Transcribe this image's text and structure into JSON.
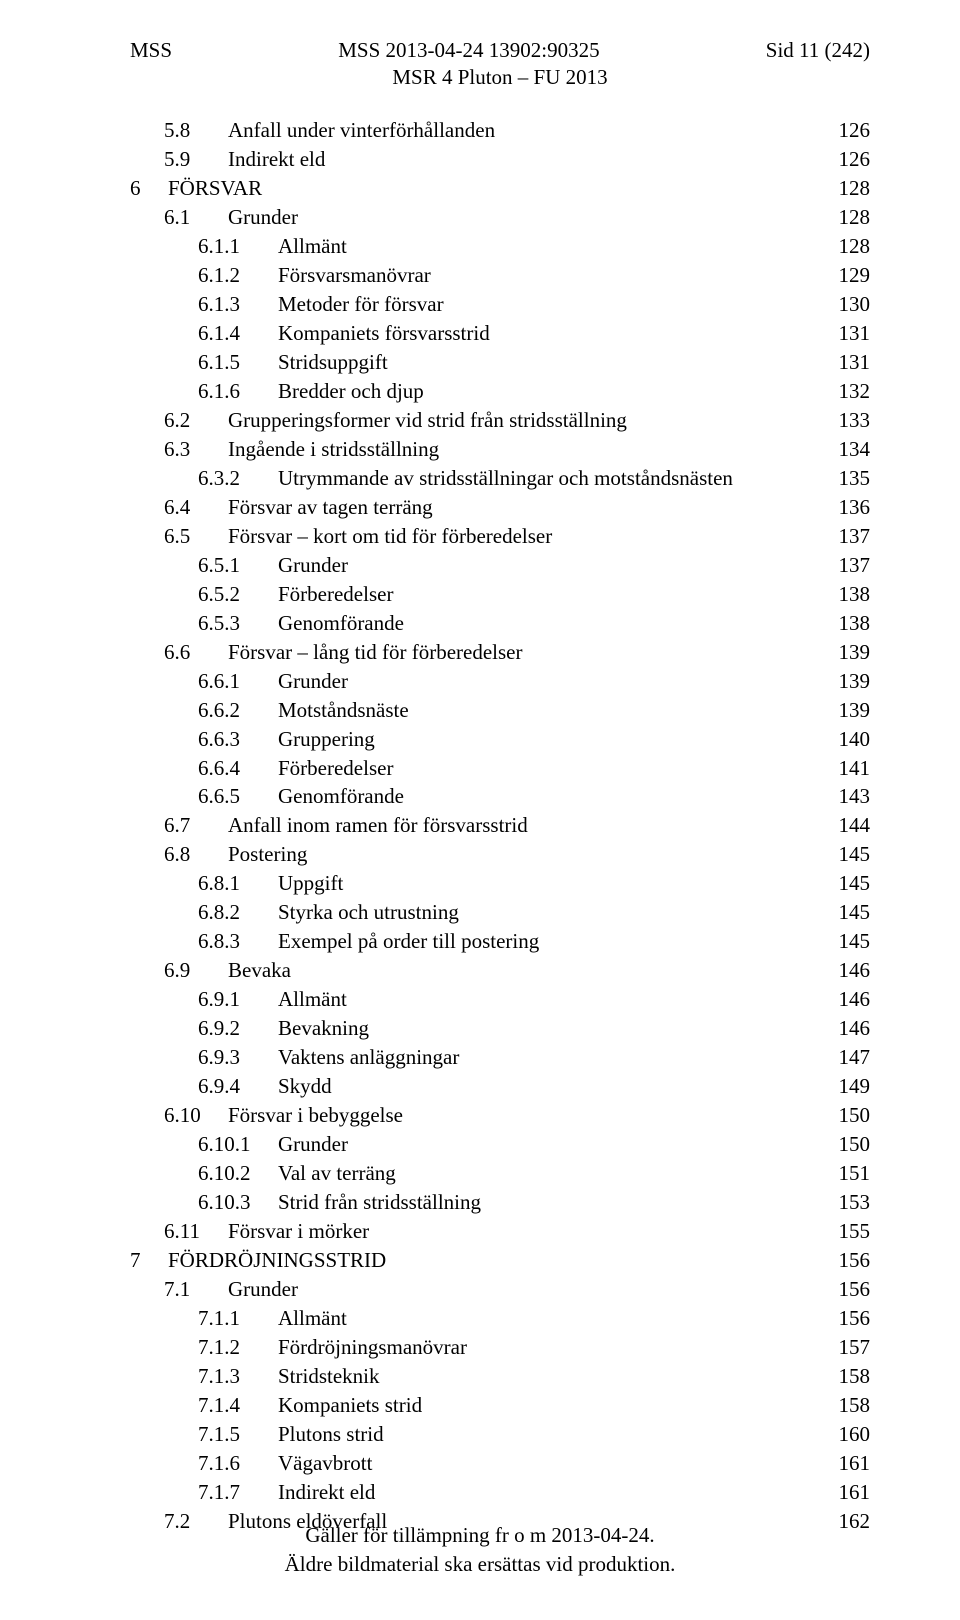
{
  "header": {
    "left": "MSS",
    "center_top": "MSS 2013-04-24 13902:90325",
    "center_sub": "MSR 4 Pluton – FU 2013",
    "right": "Sid 11 (242)"
  },
  "toc": [
    {
      "level": 1,
      "num": "5.8",
      "title": "Anfall under vinterförhållanden",
      "page": "126"
    },
    {
      "level": 1,
      "num": "5.9",
      "title": "Indirekt eld",
      "page": "126"
    },
    {
      "level": 0,
      "num": "6",
      "title": "FÖRSVAR",
      "page": "128"
    },
    {
      "level": 1,
      "num": "6.1",
      "title": "Grunder",
      "page": "128"
    },
    {
      "level": 2,
      "num": "6.1.1",
      "title": "Allmänt",
      "page": "128"
    },
    {
      "level": 2,
      "num": "6.1.2",
      "title": "Försvarsmanövrar",
      "page": "129"
    },
    {
      "level": 2,
      "num": "6.1.3",
      "title": "Metoder för försvar",
      "page": "130"
    },
    {
      "level": 2,
      "num": "6.1.4",
      "title": "Kompaniets försvarsstrid",
      "page": "131"
    },
    {
      "level": 2,
      "num": "6.1.5",
      "title": "Stridsuppgift",
      "page": "131"
    },
    {
      "level": 2,
      "num": "6.1.6",
      "title": "Bredder och djup",
      "page": "132"
    },
    {
      "level": 1,
      "num": "6.2",
      "title": "Grupperingsformer vid strid från stridsställning",
      "page": "133"
    },
    {
      "level": 1,
      "num": "6.3",
      "title": "Ingående i stridsställning",
      "page": "134"
    },
    {
      "level": 2,
      "num": "6.3.2",
      "title": "Utrymmande av stridsställningar och motståndsnästen",
      "page": "135"
    },
    {
      "level": 1,
      "num": "6.4",
      "title": "Försvar av tagen terräng",
      "page": "136"
    },
    {
      "level": 1,
      "num": "6.5",
      "title": "Försvar – kort om tid för förberedelser",
      "page": "137"
    },
    {
      "level": 2,
      "num": "6.5.1",
      "title": "Grunder",
      "page": "137"
    },
    {
      "level": 2,
      "num": "6.5.2",
      "title": "Förberedelser",
      "page": "138"
    },
    {
      "level": 2,
      "num": "6.5.3",
      "title": "Genomförande",
      "page": "138"
    },
    {
      "level": 1,
      "num": "6.6",
      "title": "Försvar – lång tid för förberedelser",
      "page": "139"
    },
    {
      "level": 2,
      "num": "6.6.1",
      "title": "Grunder",
      "page": "139"
    },
    {
      "level": 2,
      "num": "6.6.2",
      "title": "Motståndsnäste",
      "page": "139"
    },
    {
      "level": 2,
      "num": "6.6.3",
      "title": "Gruppering",
      "page": "140"
    },
    {
      "level": 2,
      "num": "6.6.4",
      "title": "Förberedelser",
      "page": "141"
    },
    {
      "level": 2,
      "num": "6.6.5",
      "title": "Genomförande",
      "page": "143"
    },
    {
      "level": 1,
      "num": "6.7",
      "title": "Anfall inom ramen för försvarsstrid",
      "page": "144"
    },
    {
      "level": 1,
      "num": "6.8",
      "title": "Postering",
      "page": "145"
    },
    {
      "level": 2,
      "num": "6.8.1",
      "title": "Uppgift",
      "page": "145"
    },
    {
      "level": 2,
      "num": "6.8.2",
      "title": "Styrka och utrustning",
      "page": "145"
    },
    {
      "level": 2,
      "num": "6.8.3",
      "title": "Exempel på order till postering",
      "page": "145"
    },
    {
      "level": 1,
      "num": "6.9",
      "title": "Bevaka",
      "page": "146"
    },
    {
      "level": 2,
      "num": "6.9.1",
      "title": "Allmänt",
      "page": "146"
    },
    {
      "level": 2,
      "num": "6.9.2",
      "title": "Bevakning",
      "page": "146"
    },
    {
      "level": 2,
      "num": "6.9.3",
      "title": "Vaktens anläggningar",
      "page": "147"
    },
    {
      "level": 2,
      "num": "6.9.4",
      "title": "Skydd",
      "page": "149"
    },
    {
      "level": 1,
      "num": "6.10",
      "title": "Försvar i bebyggelse",
      "page": "150"
    },
    {
      "level": 2,
      "num": "6.10.1",
      "title": "Grunder",
      "page": "150"
    },
    {
      "level": 2,
      "num": "6.10.2",
      "title": "Val av terräng",
      "page": "151"
    },
    {
      "level": 2,
      "num": "6.10.3",
      "title": "Strid från stridsställning",
      "page": "153"
    },
    {
      "level": 1,
      "num": "6.11",
      "title": "Försvar i mörker",
      "page": "155"
    },
    {
      "level": 0,
      "num": "7",
      "title": "FÖRDRÖJNINGSSTRID",
      "page": "156"
    },
    {
      "level": 1,
      "num": "7.1",
      "title": "Grunder",
      "page": "156"
    },
    {
      "level": 2,
      "num": "7.1.1",
      "title": "Allmänt",
      "page": "156"
    },
    {
      "level": 2,
      "num": "7.1.2",
      "title": "Fördröjningsmanövrar",
      "page": "157"
    },
    {
      "level": 2,
      "num": "7.1.3",
      "title": "Stridsteknik",
      "page": "158"
    },
    {
      "level": 2,
      "num": "7.1.4",
      "title": "Kompaniets strid",
      "page": "158"
    },
    {
      "level": 2,
      "num": "7.1.5",
      "title": "Plutons strid",
      "page": "160"
    },
    {
      "level": 2,
      "num": "7.1.6",
      "title": "Vägavbrott",
      "page": "161"
    },
    {
      "level": 2,
      "num": "7.1.7",
      "title": "Indirekt eld",
      "page": "161"
    },
    {
      "level": 1,
      "num": "7.2",
      "title": "Plutons eldöverfall",
      "page": "162"
    }
  ],
  "footer": {
    "line1": "Gäller för tillämpning fr o m 2013-04-24.",
    "line2": "Äldre bildmaterial ska ersättas vid produktion."
  }
}
